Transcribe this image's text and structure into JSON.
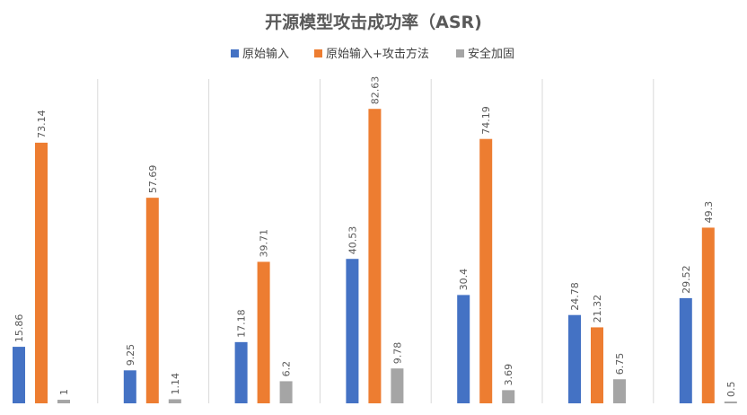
{
  "chart_data": {
    "type": "bar",
    "title": "开源模型攻击成功率（ASR)",
    "categories": [
      "",
      "",
      "",
      "",
      "",
      "",
      ""
    ],
    "series": [
      {
        "name": "原始输入",
        "color": "#4472C4",
        "values": [
          15.86,
          9.25,
          17.18,
          40.53,
          30.4,
          24.78,
          29.52
        ]
      },
      {
        "name": "原始输入+攻击方法",
        "color": "#ED7D31",
        "values": [
          73.14,
          57.69,
          39.71,
          82.63,
          74.19,
          21.32,
          49.3
        ]
      },
      {
        "name": "安全加固",
        "color": "#A5A5A5",
        "values": [
          1,
          1.14,
          6.2,
          9.78,
          3.69,
          6.75,
          0.5
        ]
      }
    ],
    "ylim": [
      0,
      91
    ],
    "grid": "vertical separators only",
    "legend": "top-center",
    "xlabel": "",
    "ylabel": ""
  }
}
